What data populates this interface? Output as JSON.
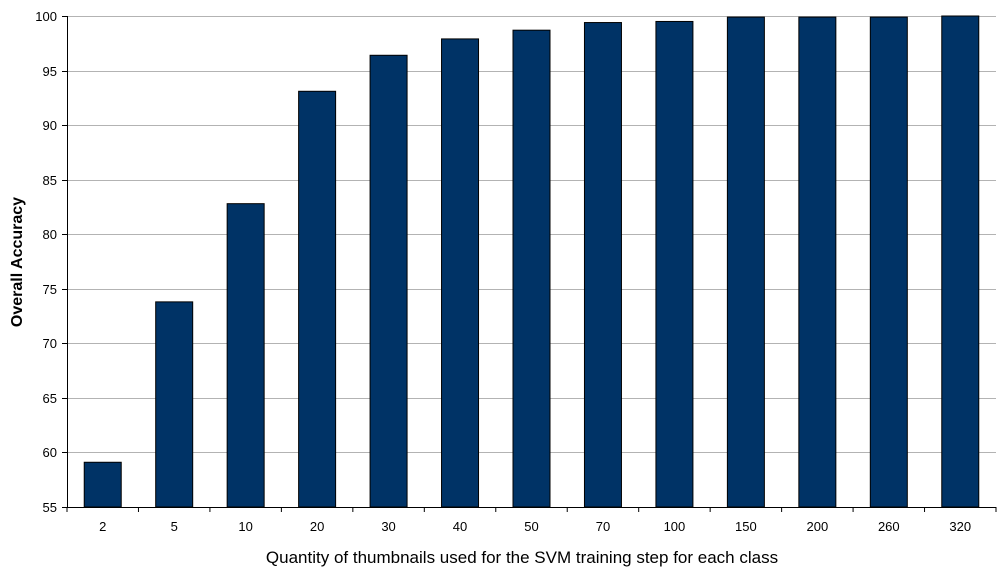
{
  "chart_data": {
    "type": "bar",
    "title": "",
    "xlabel": "Quantity of thumbnails used for the SVM training step for each class",
    "ylabel": "Overall Accuracy",
    "categories": [
      "2",
      "5",
      "10",
      "20",
      "30",
      "40",
      "50",
      "70",
      "100",
      "150",
      "200",
      "260",
      "320"
    ],
    "values": [
      59.1,
      73.8,
      82.8,
      93.1,
      96.4,
      97.9,
      98.7,
      99.4,
      99.5,
      99.9,
      99.9,
      99.9,
      100
    ],
    "ylim": [
      55,
      100
    ],
    "yticks": [
      55,
      60,
      65,
      70,
      75,
      80,
      85,
      90,
      95,
      100
    ],
    "grid": true,
    "legend": "none",
    "bar_color": "#003366",
    "grid_color": "#b3b3b3"
  }
}
